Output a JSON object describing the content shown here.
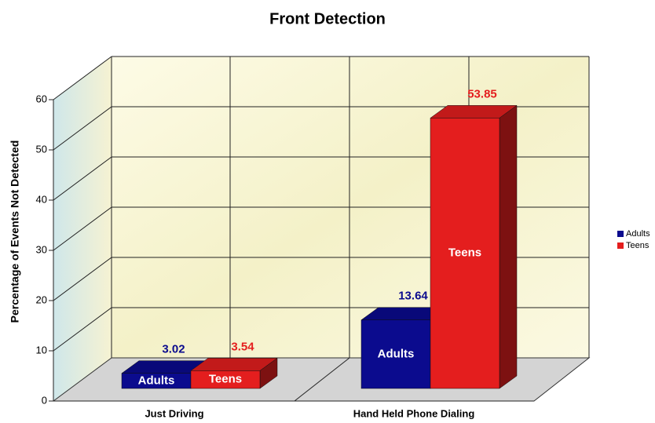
{
  "chart_data": {
    "type": "bar3d",
    "title": "Front Detection",
    "y_label": "Percentage of Events Not Detected",
    "categories": [
      "Just Driving",
      "Hand Held Phone Dialing"
    ],
    "series": [
      {
        "name": "Adults",
        "color": "#0b0b8e",
        "values": [
          3.02,
          13.64
        ]
      },
      {
        "name": "Teens",
        "color": "#e41e1e",
        "values": [
          3.54,
          53.85
        ]
      }
    ],
    "ylim": [
      0,
      60
    ],
    "yticks": [
      0,
      10,
      20,
      30,
      40,
      50,
      60
    ],
    "grid": true,
    "legend": "right"
  }
}
